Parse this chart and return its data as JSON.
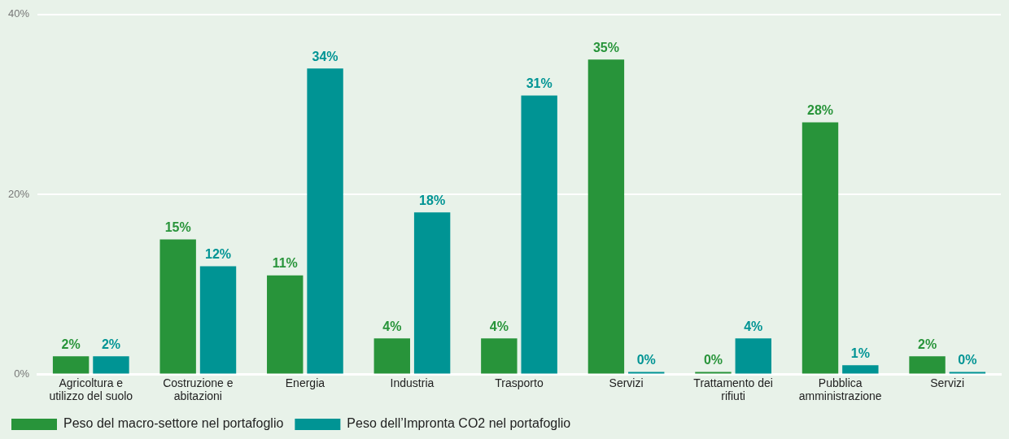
{
  "chart_data": {
    "type": "bar",
    "categories": [
      "Agricoltura e utilizzo del suolo",
      "Costruzione e abitazioni",
      "Energia",
      "Industria",
      "Trasporto",
      "Servizi",
      "Trattamento dei rifiuti",
      "Pubblica amministrazione",
      "Servizi"
    ],
    "series": [
      {
        "name": "Peso del macro-settore nel portafoglio",
        "color": "#28943a",
        "values": [
          2,
          15,
          11,
          4,
          4,
          35,
          0,
          28,
          2
        ],
        "value_labels": [
          "2%",
          "15%",
          "11%",
          "4%",
          "4%",
          "35%",
          "0%",
          "28%",
          "2%"
        ]
      },
      {
        "name": "Peso dell’Impronta CO2 nel portafoglio",
        "color": "#009494",
        "values": [
          2,
          12,
          34,
          18,
          31,
          0,
          4,
          1,
          0
        ],
        "value_labels": [
          "2%",
          "12%",
          "34%",
          "18%",
          "31%",
          "0%",
          "4%",
          "1%",
          "0%"
        ]
      }
    ],
    "ylim": [
      0,
      40
    ],
    "yticks": [
      {
        "value": 0,
        "label": "0%"
      },
      {
        "value": 20,
        "label": "20%"
      },
      {
        "value": 40,
        "label": "40%"
      }
    ],
    "grid": "y",
    "legend": "bottom"
  }
}
